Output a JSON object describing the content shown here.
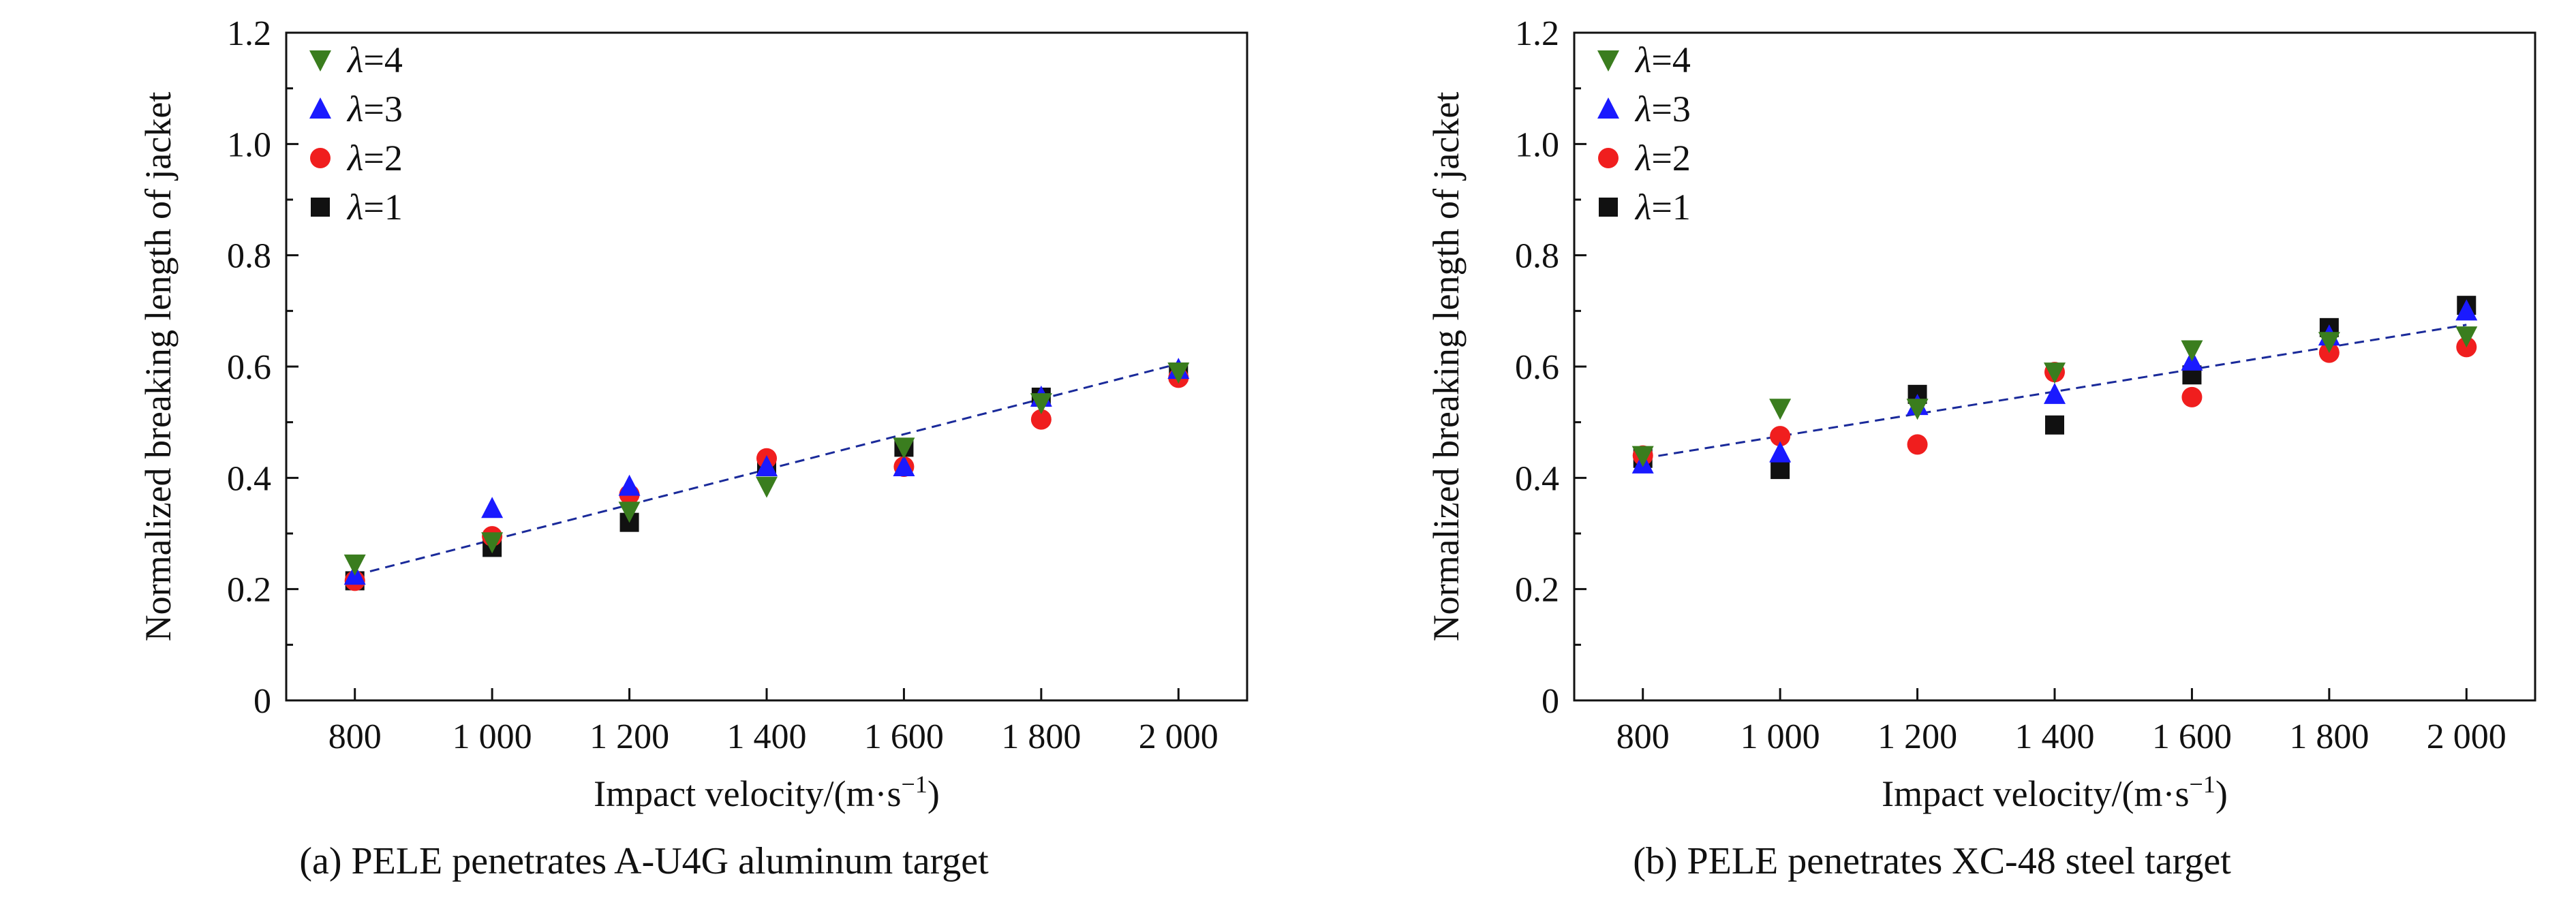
{
  "chart_data": [
    {
      "type": "scatter",
      "caption": "(a) PELE penetrates A-U4G aluminum target",
      "xlabel": "Impact velocity/(m·s",
      "xlabel_sup": "−1",
      "xlabel_tail": ")",
      "ylabel": "Normalized breaking length of jacket",
      "xlim": [
        700,
        2100
      ],
      "ylim": [
        0,
        1.2
      ],
      "x_ticks": [
        800,
        1000,
        1200,
        1400,
        1600,
        1800,
        2000
      ],
      "x_tick_labels": [
        "800",
        "1 000",
        "1 200",
        "1 400",
        "1 600",
        "1 800",
        "2 000"
      ],
      "y_ticks": [
        0,
        0.2,
        0.4,
        0.6,
        0.8,
        1.0,
        1.2
      ],
      "y_tick_labels": [
        "0",
        "0.2",
        "0.4",
        "0.6",
        "0.8",
        "1.0",
        "1.2"
      ],
      "grid": false,
      "legend_position": "top-left",
      "x": [
        800,
        1000,
        1200,
        1400,
        1600,
        1800,
        2000
      ],
      "series": [
        {
          "name": "λ=4",
          "marker": "triangle-down",
          "color": "#3a7d1e",
          "values": [
            0.245,
            0.285,
            0.34,
            0.385,
            0.455,
            0.535,
            0.59
          ]
        },
        {
          "name": "λ=3",
          "marker": "triangle-up",
          "color": "#1a1aff",
          "values": [
            0.225,
            0.345,
            0.385,
            0.42,
            0.42,
            0.545,
            0.595
          ]
        },
        {
          "name": "λ=2",
          "marker": "circle",
          "color": "#f01e1e",
          "values": [
            0.215,
            0.295,
            0.37,
            0.435,
            0.42,
            0.505,
            0.58
          ]
        },
        {
          "name": "λ=1",
          "marker": "square",
          "color": "#111111",
          "values": [
            0.215,
            0.275,
            0.32,
            0.42,
            0.455,
            0.545,
            0.59
          ]
        }
      ],
      "trendline": {
        "style": "dashed",
        "color": "#1a2a9a",
        "x": [
          800,
          2000
        ],
        "y": [
          0.225,
          0.605
        ]
      }
    },
    {
      "type": "scatter",
      "caption": "(b) PELE penetrates XC-48 steel target",
      "xlabel": "Impact velocity/(m·s",
      "xlabel_sup": "−1",
      "xlabel_tail": ")",
      "ylabel": "Normalized breaking length of jacket",
      "xlim": [
        700,
        2100
      ],
      "ylim": [
        0,
        1.2
      ],
      "x_ticks": [
        800,
        1000,
        1200,
        1400,
        1600,
        1800,
        2000
      ],
      "x_tick_labels": [
        "800",
        "1 000",
        "1 200",
        "1 400",
        "1 600",
        "1 800",
        "2 000"
      ],
      "y_ticks": [
        0,
        0.2,
        0.4,
        0.6,
        0.8,
        1.0,
        1.2
      ],
      "y_tick_labels": [
        "0",
        "0.2",
        "0.4",
        "0.6",
        "0.8",
        "1.0",
        "1.2"
      ],
      "grid": false,
      "legend_position": "top-left",
      "x": [
        800,
        1000,
        1200,
        1400,
        1600,
        1800,
        2000
      ],
      "series": [
        {
          "name": "λ=4",
          "marker": "triangle-down",
          "color": "#3a7d1e",
          "values": [
            0.44,
            0.525,
            0.525,
            0.59,
            0.63,
            0.645,
            0.655
          ]
        },
        {
          "name": "λ=3",
          "marker": "triangle-up",
          "color": "#1a1aff",
          "values": [
            0.425,
            0.445,
            0.53,
            0.55,
            0.61,
            0.655,
            0.7
          ]
        },
        {
          "name": "λ=2",
          "marker": "circle",
          "color": "#f01e1e",
          "values": [
            0.44,
            0.475,
            0.46,
            0.59,
            0.545,
            0.625,
            0.635
          ]
        },
        {
          "name": "λ=1",
          "marker": "square",
          "color": "#111111",
          "values": [
            0.435,
            0.415,
            0.55,
            0.495,
            0.585,
            0.67,
            0.71
          ]
        }
      ],
      "trendline": {
        "style": "dashed",
        "color": "#1a2a9a",
        "x": [
          800,
          2000
        ],
        "y": [
          0.435,
          0.675
        ]
      }
    }
  ]
}
